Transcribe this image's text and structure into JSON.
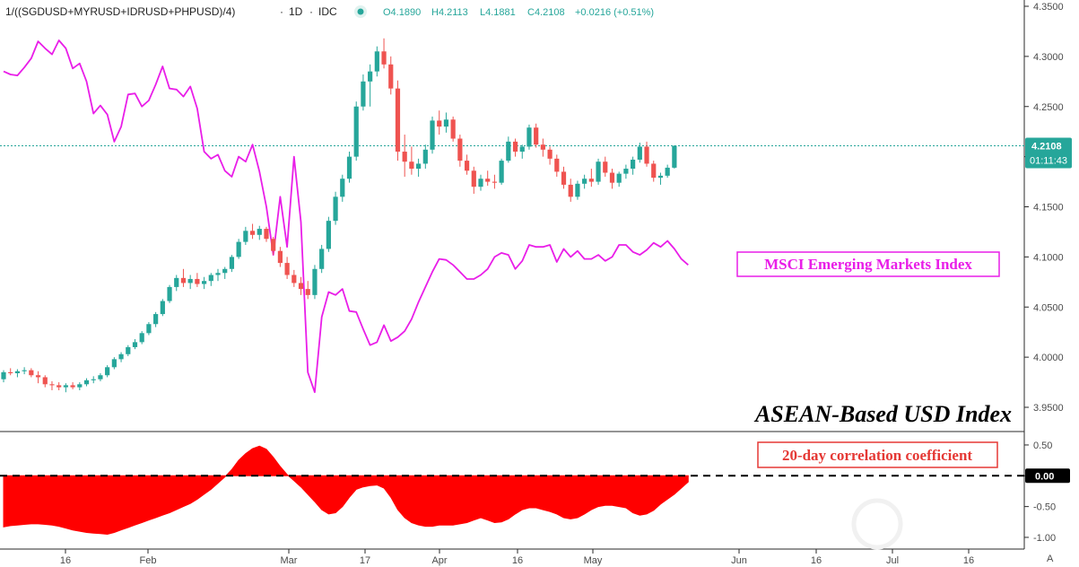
{
  "header": {
    "symbol": "1/((SGDUSD+MYRUSD+IDRUSD+PHPUSD)/4)",
    "interval": "1D",
    "exchange": "IDC",
    "open": "O4.1890",
    "high": "H4.2113",
    "low": "L4.1881",
    "close": "C4.2108",
    "change": "+0.0216 (+0.51%)"
  },
  "price_badge": {
    "price": "4.2108",
    "countdown": "01:11:43"
  },
  "annotations": {
    "msci_label": "MSCI Emerging Markets Index",
    "index_title": "ASEAN-Based USD Index",
    "corr_label": "20-day correlation coefficient"
  },
  "colors": {
    "up": "#26a69a",
    "down": "#ef5350",
    "msci": "#e91ee8",
    "corr_fill": "#ff0000",
    "last_price_line": "#26a69a"
  },
  "chart_data": [
    {
      "type": "candlestick",
      "name": "ASEAN-Based USD Index",
      "y_ticks": [
        "4.3500",
        "4.3000",
        "4.2500",
        "4.2000",
        "4.1500",
        "4.1000",
        "4.0500",
        "4.0000",
        "3.9500"
      ],
      "x_ticks": [
        "16",
        "Feb",
        "Mar",
        "17",
        "Apr",
        "16",
        "May",
        "Jun",
        "16",
        "Jul",
        "16"
      ],
      "last_price": 4.2108,
      "ylim": [
        3.945,
        4.355
      ],
      "candles": [
        [
          3.978,
          3.987,
          3.975,
          3.985
        ],
        [
          3.985,
          3.989,
          3.982,
          3.984
        ],
        [
          3.984,
          3.988,
          3.98,
          3.986
        ],
        [
          3.986,
          3.99,
          3.983,
          3.987
        ],
        [
          3.987,
          3.989,
          3.98,
          3.982
        ],
        [
          3.982,
          3.986,
          3.974,
          3.98
        ],
        [
          3.98,
          3.982,
          3.97,
          3.973
        ],
        [
          3.973,
          3.976,
          3.967,
          3.972
        ],
        [
          3.972,
          3.975,
          3.967,
          3.97
        ],
        [
          3.97,
          3.974,
          3.965,
          3.972
        ],
        [
          3.972,
          3.975,
          3.968,
          3.97
        ],
        [
          3.97,
          3.975,
          3.967,
          3.973
        ],
        [
          3.973,
          3.979,
          3.971,
          3.977
        ],
        [
          3.977,
          3.981,
          3.974,
          3.978
        ],
        [
          3.978,
          3.984,
          3.976,
          3.982
        ],
        [
          3.982,
          3.992,
          3.98,
          3.99
        ],
        [
          3.99,
          4.0,
          3.988,
          3.998
        ],
        [
          3.998,
          4.005,
          3.995,
          4.003
        ],
        [
          4.003,
          4.012,
          4.001,
          4.01
        ],
        [
          4.01,
          4.018,
          4.008,
          4.015
        ],
        [
          4.015,
          4.026,
          4.013,
          4.024
        ],
        [
          4.024,
          4.035,
          4.022,
          4.033
        ],
        [
          4.033,
          4.045,
          4.03,
          4.043
        ],
        [
          4.043,
          4.058,
          4.041,
          4.056
        ],
        [
          4.056,
          4.072,
          4.054,
          4.07
        ],
        [
          4.07,
          4.082,
          4.066,
          4.079
        ],
        [
          4.079,
          4.088,
          4.07,
          4.074
        ],
        [
          4.074,
          4.082,
          4.068,
          4.078
        ],
        [
          4.078,
          4.084,
          4.07,
          4.073
        ],
        [
          4.073,
          4.08,
          4.068,
          4.076
        ],
        [
          4.076,
          4.084,
          4.071,
          4.082
        ],
        [
          4.082,
          4.088,
          4.076,
          4.084
        ],
        [
          4.084,
          4.09,
          4.078,
          4.088
        ],
        [
          4.088,
          4.102,
          4.085,
          4.1
        ],
        [
          4.1,
          4.118,
          4.098,
          4.115
        ],
        [
          4.115,
          4.13,
          4.112,
          4.126
        ],
        [
          4.126,
          4.133,
          4.118,
          4.122
        ],
        [
          4.122,
          4.131,
          4.117,
          4.128
        ],
        [
          4.128,
          4.13,
          4.115,
          4.118
        ],
        [
          4.118,
          4.12,
          4.102,
          4.106
        ],
        [
          4.106,
          4.11,
          4.09,
          4.094
        ],
        [
          4.094,
          4.1,
          4.078,
          4.082
        ],
        [
          4.082,
          4.087,
          4.07,
          4.074
        ],
        [
          4.074,
          4.08,
          4.062,
          4.068
        ],
        [
          4.068,
          4.076,
          4.058,
          4.062
        ],
        [
          4.062,
          4.092,
          4.058,
          4.088
        ],
        [
          4.088,
          4.112,
          4.084,
          4.108
        ],
        [
          4.108,
          4.14,
          4.105,
          4.136
        ],
        [
          4.136,
          4.165,
          4.132,
          4.16
        ],
        [
          4.16,
          4.182,
          4.155,
          4.178
        ],
        [
          4.178,
          4.205,
          4.174,
          4.2
        ],
        [
          4.2,
          4.255,
          4.196,
          4.25
        ],
        [
          4.25,
          4.282,
          4.246,
          4.275
        ],
        [
          4.275,
          4.292,
          4.25,
          4.285
        ],
        [
          4.285,
          4.31,
          4.28,
          4.305
        ],
        [
          4.305,
          4.318,
          4.288,
          4.292
        ],
        [
          4.292,
          4.3,
          4.262,
          4.268
        ],
        [
          4.268,
          4.276,
          4.196,
          4.205
        ],
        [
          4.205,
          4.222,
          4.18,
          4.195
        ],
        [
          4.195,
          4.21,
          4.182,
          4.188
        ],
        [
          4.188,
          4.198,
          4.18,
          4.193
        ],
        [
          4.193,
          4.212,
          4.188,
          4.207
        ],
        [
          4.207,
          4.24,
          4.203,
          4.236
        ],
        [
          4.236,
          4.246,
          4.222,
          4.23
        ],
        [
          4.23,
          4.244,
          4.224,
          4.237
        ],
        [
          4.237,
          4.24,
          4.215,
          4.218
        ],
        [
          4.218,
          4.222,
          4.19,
          4.196
        ],
        [
          4.196,
          4.202,
          4.182,
          4.186
        ],
        [
          4.186,
          4.19,
          4.163,
          4.17
        ],
        [
          4.17,
          4.182,
          4.166,
          4.178
        ],
        [
          4.178,
          4.186,
          4.171,
          4.175
        ],
        [
          4.175,
          4.182,
          4.168,
          4.174
        ],
        [
          4.174,
          4.198,
          4.172,
          4.196
        ],
        [
          4.196,
          4.22,
          4.194,
          4.215
        ],
        [
          4.215,
          4.218,
          4.2,
          4.205
        ],
        [
          4.205,
          4.212,
          4.198,
          4.21
        ],
        [
          4.21,
          4.232,
          4.207,
          4.229
        ],
        [
          4.229,
          4.233,
          4.209,
          4.212
        ],
        [
          4.212,
          4.218,
          4.2,
          4.207
        ],
        [
          4.207,
          4.21,
          4.192,
          4.198
        ],
        [
          4.198,
          4.202,
          4.18,
          4.185
        ],
        [
          4.185,
          4.19,
          4.168,
          4.172
        ],
        [
          4.172,
          4.178,
          4.155,
          4.16
        ],
        [
          4.16,
          4.176,
          4.157,
          4.173
        ],
        [
          4.173,
          4.182,
          4.168,
          4.178
        ],
        [
          4.178,
          4.188,
          4.17,
          4.175
        ],
        [
          4.175,
          4.198,
          4.172,
          4.195
        ],
        [
          4.195,
          4.2,
          4.18,
          4.184
        ],
        [
          4.184,
          4.188,
          4.168,
          4.174
        ],
        [
          4.174,
          4.185,
          4.17,
          4.183
        ],
        [
          4.183,
          4.192,
          4.178,
          4.188
        ],
        [
          4.188,
          4.2,
          4.182,
          4.197
        ],
        [
          4.197,
          4.214,
          4.194,
          4.21
        ],
        [
          4.21,
          4.215,
          4.19,
          4.193
        ],
        [
          4.193,
          4.196,
          4.175,
          4.179
        ],
        [
          4.179,
          4.184,
          4.172,
          4.181
        ],
        [
          4.181,
          4.192,
          4.179,
          4.189
        ],
        [
          4.189,
          4.2113,
          4.1881,
          4.2108
        ]
      ]
    },
    {
      "type": "line",
      "name": "MSCI Emerging Markets Index",
      "ylim": [
        3.945,
        4.355
      ],
      "values": [
        4.285,
        4.282,
        4.281,
        4.289,
        4.298,
        4.315,
        4.308,
        4.302,
        4.316,
        4.308,
        4.288,
        4.293,
        4.275,
        4.243,
        4.251,
        4.242,
        4.215,
        4.23,
        4.262,
        4.263,
        4.25,
        4.256,
        4.272,
        4.29,
        4.268,
        4.267,
        4.26,
        4.27,
        4.248,
        4.205,
        4.198,
        4.202,
        4.186,
        4.18,
        4.2,
        4.195,
        4.212,
        4.185,
        4.15,
        4.102,
        4.16,
        4.11,
        4.2,
        4.135,
        3.985,
        3.965,
        4.04,
        4.065,
        4.062,
        4.068,
        4.046,
        4.045,
        4.028,
        4.012,
        4.015,
        4.032,
        4.016,
        4.02,
        4.026,
        4.038,
        4.055,
        4.07,
        4.085,
        4.098,
        4.097,
        4.092,
        4.085,
        4.078,
        4.078,
        4.082,
        4.088,
        4.1,
        4.104,
        4.102,
        4.088,
        4.096,
        4.112,
        4.11,
        4.11,
        4.112,
        4.095,
        4.108,
        4.1,
        4.106,
        4.098,
        4.098,
        4.102,
        4.096,
        4.1,
        4.112,
        4.112,
        4.105,
        4.102,
        4.107,
        4.114,
        4.11,
        4.116,
        4.108,
        4.098,
        4.092
      ]
    },
    {
      "type": "area",
      "name": "20-day correlation coefficient",
      "y_ticks": [
        "0.50",
        "0.00",
        "-0.50",
        "-1.00"
      ],
      "zero_label": "0.00",
      "ylim": [
        -1.1,
        0.6
      ],
      "values": [
        -0.83,
        -0.81,
        -0.8,
        -0.79,
        -0.78,
        -0.78,
        -0.79,
        -0.8,
        -0.82,
        -0.85,
        -0.88,
        -0.9,
        -0.92,
        -0.93,
        -0.94,
        -0.95,
        -0.92,
        -0.88,
        -0.84,
        -0.8,
        -0.76,
        -0.72,
        -0.68,
        -0.64,
        -0.6,
        -0.55,
        -0.5,
        -0.45,
        -0.38,
        -0.3,
        -0.22,
        -0.12,
        -0.02,
        0.1,
        0.25,
        0.36,
        0.44,
        0.48,
        0.43,
        0.3,
        0.15,
        0.02,
        -0.08,
        -0.18,
        -0.3,
        -0.42,
        -0.55,
        -0.62,
        -0.6,
        -0.5,
        -0.35,
        -0.22,
        -0.18,
        -0.16,
        -0.15,
        -0.2,
        -0.35,
        -0.55,
        -0.68,
        -0.76,
        -0.8,
        -0.82,
        -0.82,
        -0.8,
        -0.8,
        -0.8,
        -0.78,
        -0.76,
        -0.72,
        -0.68,
        -0.72,
        -0.76,
        -0.75,
        -0.7,
        -0.62,
        -0.55,
        -0.52,
        -0.52,
        -0.55,
        -0.58,
        -0.62,
        -0.68,
        -0.7,
        -0.68,
        -0.62,
        -0.55,
        -0.5,
        -0.48,
        -0.48,
        -0.5,
        -0.52,
        -0.6,
        -0.64,
        -0.62,
        -0.56,
        -0.46,
        -0.38,
        -0.3,
        -0.2,
        -0.1
      ]
    }
  ]
}
